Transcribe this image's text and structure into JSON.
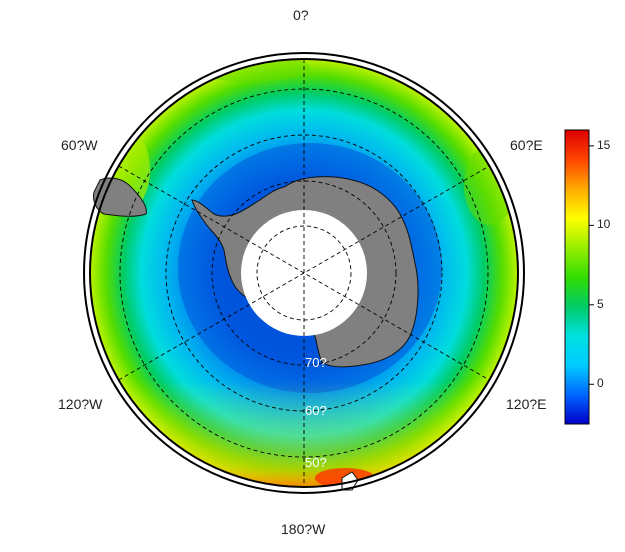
{
  "map": {
    "projection": "south polar stereographic",
    "lon_labels": {
      "top": "0?",
      "upper_left": "60?W",
      "upper_right": "60?E",
      "lower_left": "120?W",
      "lower_right": "120?E",
      "bottom": "180?W"
    },
    "lat_labels": [
      "70?",
      "60?",
      "50?"
    ],
    "colors": {
      "land": "#808080",
      "pole_hole": "#ffffff",
      "border": "#000000",
      "graticule": "#000000"
    }
  },
  "colorbar": {
    "ticks": [
      "15",
      "10",
      "5",
      "0"
    ],
    "tick_values": [
      15,
      10,
      5,
      0
    ],
    "vmin": -2.5,
    "vmax": 16,
    "stops": [
      "#0000cc",
      "#0066ff",
      "#00ccff",
      "#00e0e0",
      "#00cc66",
      "#33dd00",
      "#99ee00",
      "#ffff00",
      "#ffaa00",
      "#ff4400",
      "#dd0000"
    ]
  }
}
